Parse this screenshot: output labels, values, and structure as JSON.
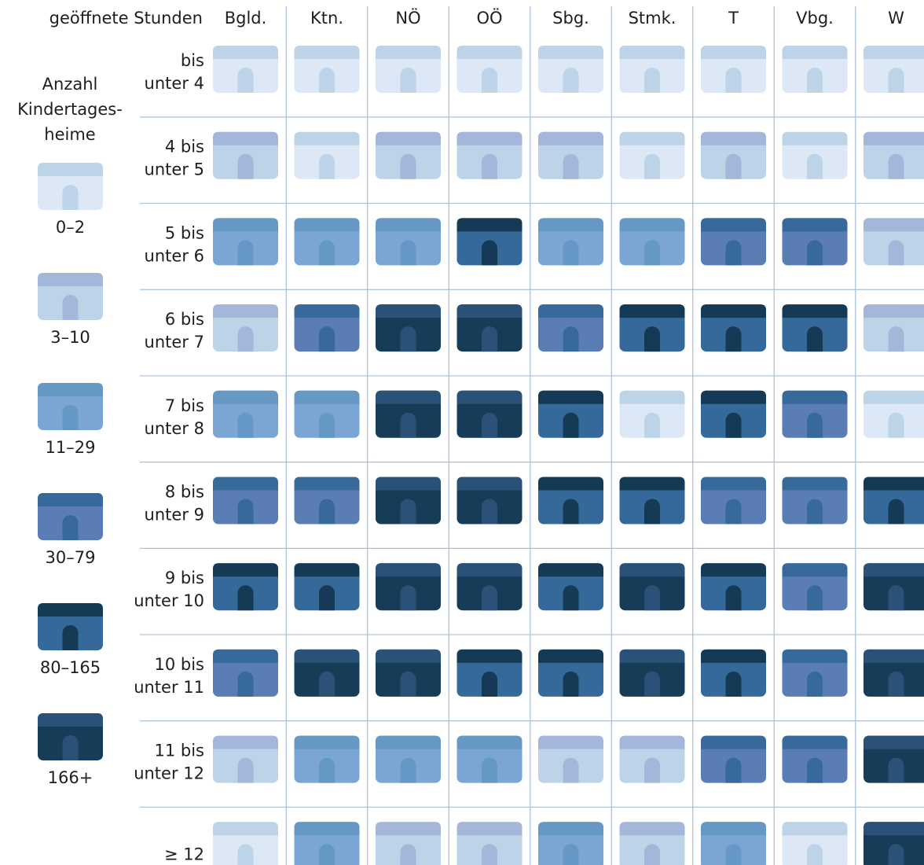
{
  "chart_data": {
    "type": "heatmap",
    "corner_label": "geöffnete Stunden",
    "columns": [
      "Bgld.",
      "Ktn.",
      "NÖ",
      "OÖ",
      "Sbg.",
      "Stmk.",
      "T",
      "Vbg.",
      "W"
    ],
    "rows": [
      {
        "label": [
          "bis",
          "unter 4"
        ]
      },
      {
        "label": [
          "4 bis",
          "unter 5"
        ]
      },
      {
        "label": [
          "5 bis",
          "unter 6"
        ]
      },
      {
        "label": [
          "6 bis",
          "unter 7"
        ]
      },
      {
        "label": [
          "7 bis",
          "unter 8"
        ]
      },
      {
        "label": [
          "8 bis",
          "unter 9"
        ]
      },
      {
        "label": [
          "9 bis",
          "unter 10"
        ]
      },
      {
        "label": [
          "10 bis",
          "unter 11"
        ]
      },
      {
        "label": [
          "11 bis",
          "unter 12"
        ]
      },
      {
        "label": [
          "≥ 12"
        ]
      }
    ],
    "value_unit": "class index into legend.classes (0 = 0–2, 5 = 166+)",
    "values": [
      [
        0,
        0,
        0,
        0,
        0,
        0,
        0,
        0,
        0
      ],
      [
        1,
        0,
        1,
        1,
        1,
        0,
        1,
        0,
        1
      ],
      [
        2,
        2,
        2,
        4,
        2,
        2,
        3,
        3,
        1
      ],
      [
        1,
        3,
        5,
        5,
        3,
        4,
        4,
        4,
        1
      ],
      [
        2,
        2,
        5,
        5,
        4,
        0,
        4,
        3,
        0
      ],
      [
        3,
        3,
        5,
        5,
        4,
        4,
        3,
        3,
        4
      ],
      [
        4,
        4,
        5,
        5,
        4,
        5,
        4,
        3,
        5
      ],
      [
        3,
        5,
        5,
        4,
        4,
        5,
        4,
        3,
        5
      ],
      [
        1,
        2,
        2,
        2,
        1,
        1,
        3,
        3,
        5
      ],
      [
        0,
        2,
        1,
        1,
        2,
        1,
        2,
        0,
        5
      ]
    ],
    "legend": {
      "title": [
        "Anzahl",
        "Kindertages-",
        "heime"
      ],
      "classes": [
        "0–2",
        "3–10",
        "11–29",
        "30–79",
        "80–165",
        "166+"
      ],
      "colors": [
        {
          "roof": "#bdd4e8",
          "body": "#dce8f5",
          "door": "#bdd4e8"
        },
        {
          "roof": "#a4b6da",
          "body": "#bdd4e8",
          "door": "#a4b6da"
        },
        {
          "roof": "#6598c5",
          "body": "#7ba6d3",
          "door": "#6598c5"
        },
        {
          "roof": "#376a9b",
          "body": "#5a7eb4",
          "door": "#376a9b"
        },
        {
          "roof": "#153a55",
          "body": "#356999",
          "door": "#153a55"
        },
        {
          "roof": "#2a5278",
          "body": "#173c57",
          "door": "#2a5278"
        }
      ]
    },
    "grid_color": "#a9bfdc",
    "grid": true
  }
}
